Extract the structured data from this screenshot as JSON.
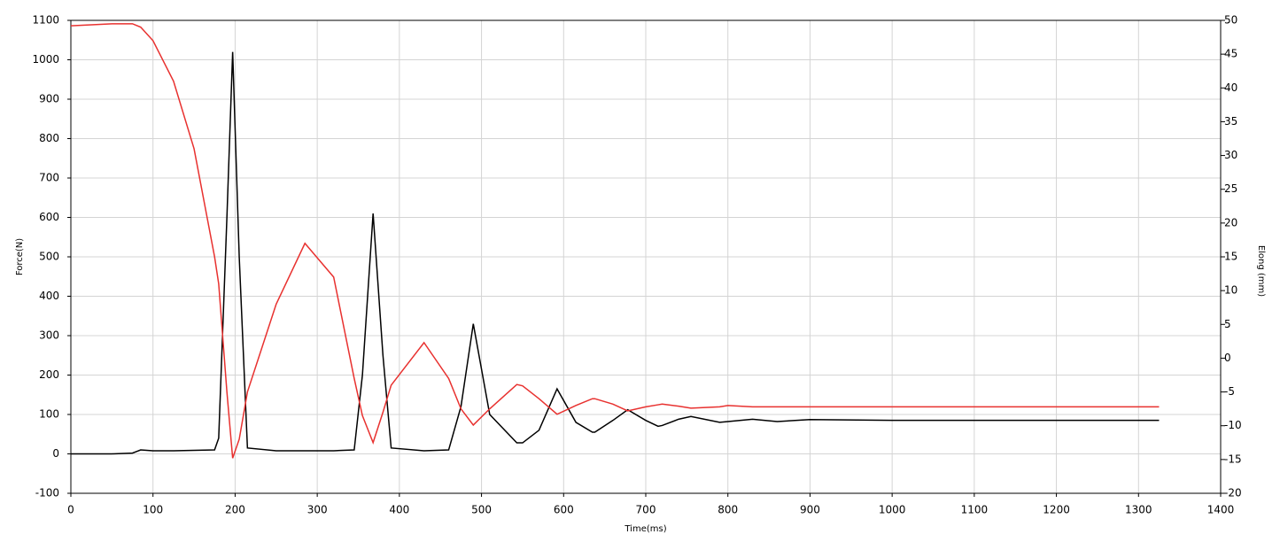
{
  "chart_data": {
    "type": "line",
    "x_label": "Time(ms)",
    "y_label": "Force(N)",
    "y2_label": "Elong (mm)",
    "x": [
      0,
      50,
      75,
      85,
      100,
      125,
      150,
      175,
      180,
      190,
      197,
      205,
      215,
      250,
      285,
      320,
      345,
      355,
      368,
      380,
      390,
      430,
      460,
      475,
      490,
      510,
      543,
      550,
      570,
      592,
      615,
      635,
      638,
      660,
      678,
      700,
      715,
      720,
      740,
      755,
      790,
      800,
      830,
      860,
      900,
      1000,
      1100,
      1200,
      1325
    ],
    "series": [
      {
        "color": "#000000",
        "values": [
          0,
          0,
          2,
          10,
          8,
          8,
          9,
          10,
          40,
          600,
          1020,
          500,
          15,
          8,
          8,
          8,
          10,
          200,
          610,
          250,
          15,
          8,
          10,
          120,
          330,
          100,
          28,
          28,
          60,
          165,
          80,
          55,
          55,
          85,
          112,
          85,
          70,
          72,
          88,
          95,
          80,
          82,
          88,
          82,
          87,
          85,
          85,
          85,
          85
        ]
      },
      {
        "color": "#e8312f",
        "axis": "y2",
        "values": [
          49.2,
          49.5,
          49.5,
          49,
          47,
          41,
          31,
          15,
          11,
          -5,
          -14.8,
          -12,
          -5,
          8,
          17,
          12,
          -3,
          -8.5,
          -12.5,
          -8,
          -4,
          2.3,
          -3,
          -7.5,
          -9.9,
          -7.5,
          -3.9,
          -4.1,
          -6,
          -8.3,
          -7,
          -6,
          -6,
          -6.8,
          -7.8,
          -7.2,
          -6.9,
          -6.8,
          -7.1,
          -7.4,
          -7.2,
          -7,
          -7.2,
          -7.2,
          -7.2,
          -7.2,
          -7.2,
          -7.2,
          -7.2
        ]
      }
    ],
    "xlim": [
      0,
      1400
    ],
    "xticks": [
      0,
      100,
      200,
      300,
      400,
      500,
      600,
      700,
      800,
      900,
      1000,
      1100,
      1200,
      1300,
      1400
    ],
    "ylim": [
      -100,
      1100
    ],
    "yticks": [
      -100,
      0,
      100,
      200,
      300,
      400,
      500,
      600,
      700,
      800,
      900,
      1000,
      1100
    ],
    "y2lim": [
      -20,
      50
    ],
    "y2ticks": [
      -20,
      -15,
      -10,
      -5,
      0,
      5,
      10,
      15,
      20,
      25,
      30,
      35,
      40,
      45,
      50
    ],
    "grid": true
  }
}
